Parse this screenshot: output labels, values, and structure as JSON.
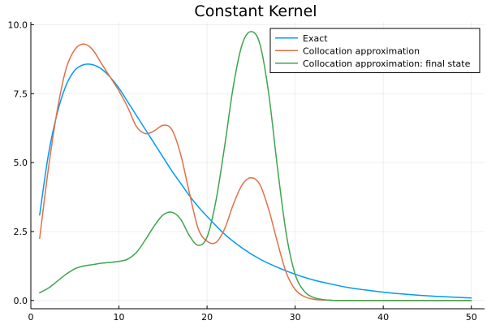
{
  "chart_data": {
    "type": "line",
    "title": "Constant Kernel",
    "xlabel": "",
    "ylabel": "",
    "xlim": [
      0,
      51.5
    ],
    "ylim": [
      -0.3,
      10.1
    ],
    "x_ticks": [
      0,
      10,
      20,
      30,
      40,
      50
    ],
    "x_tick_labels": [
      "0",
      "10",
      "20",
      "30",
      "40",
      "50"
    ],
    "y_ticks": [
      0,
      2.5,
      5,
      7.5,
      10
    ],
    "y_tick_labels": [
      "0.0",
      "2.5",
      "5.0",
      "7.5",
      "10.0"
    ],
    "grid": true,
    "legend_position": "top-right",
    "series": [
      {
        "name": "Exact",
        "color": "#009AFA",
        "x": [
          1,
          2,
          3,
          4,
          5,
          6,
          7,
          8,
          9,
          10,
          11,
          12,
          13,
          14,
          15,
          16,
          17,
          18,
          19,
          20,
          22,
          24,
          26,
          28,
          30,
          32,
          34,
          36,
          38,
          40,
          42,
          44,
          46,
          48,
          50
        ],
        "y": [
          3.1,
          5.3,
          6.8,
          7.8,
          8.35,
          8.55,
          8.55,
          8.4,
          8.1,
          7.7,
          7.2,
          6.7,
          6.2,
          5.7,
          5.2,
          4.7,
          4.25,
          3.8,
          3.4,
          3.05,
          2.4,
          1.9,
          1.5,
          1.2,
          0.95,
          0.75,
          0.6,
          0.47,
          0.38,
          0.3,
          0.24,
          0.19,
          0.15,
          0.12,
          0.09
        ]
      },
      {
        "name": "Collocation approximation",
        "color": "#E36F47",
        "x": [
          1,
          2,
          3,
          4,
          5,
          6,
          7,
          8,
          9,
          10,
          11,
          12,
          13,
          14,
          15,
          16,
          17,
          18,
          19,
          20,
          21,
          22,
          23,
          24,
          25,
          26,
          27,
          28,
          29,
          30,
          31,
          32,
          33,
          34,
          35,
          40,
          45,
          50
        ],
        "y": [
          2.25,
          4.8,
          6.9,
          8.4,
          9.1,
          9.3,
          9.1,
          8.6,
          8.1,
          7.6,
          7.0,
          6.3,
          6.05,
          6.15,
          6.35,
          6.2,
          5.3,
          3.9,
          2.6,
          2.15,
          2.1,
          2.6,
          3.5,
          4.2,
          4.45,
          4.2,
          3.3,
          2.1,
          1.0,
          0.4,
          0.15,
          0.05,
          0.02,
          0.01,
          0.0,
          0.0,
          0.0,
          0.0
        ]
      },
      {
        "name": "Collocation approximation: final state",
        "color": "#3EA44E",
        "x": [
          1,
          2,
          3,
          4,
          5,
          6,
          7,
          8,
          9,
          10,
          11,
          12,
          13,
          14,
          15,
          16,
          17,
          18,
          19,
          20,
          21,
          22,
          23,
          24,
          25,
          26,
          27,
          28,
          29,
          30,
          31,
          32,
          33,
          34,
          35,
          40,
          45,
          50
        ],
        "y": [
          0.28,
          0.45,
          0.7,
          0.95,
          1.15,
          1.25,
          1.3,
          1.35,
          1.38,
          1.42,
          1.5,
          1.75,
          2.2,
          2.7,
          3.1,
          3.2,
          2.95,
          2.35,
          2.0,
          2.3,
          3.6,
          5.6,
          7.8,
          9.3,
          9.75,
          9.3,
          7.5,
          4.8,
          2.4,
          0.95,
          0.35,
          0.12,
          0.04,
          0.01,
          0.0,
          0.0,
          0.0,
          0.0
        ]
      }
    ]
  }
}
